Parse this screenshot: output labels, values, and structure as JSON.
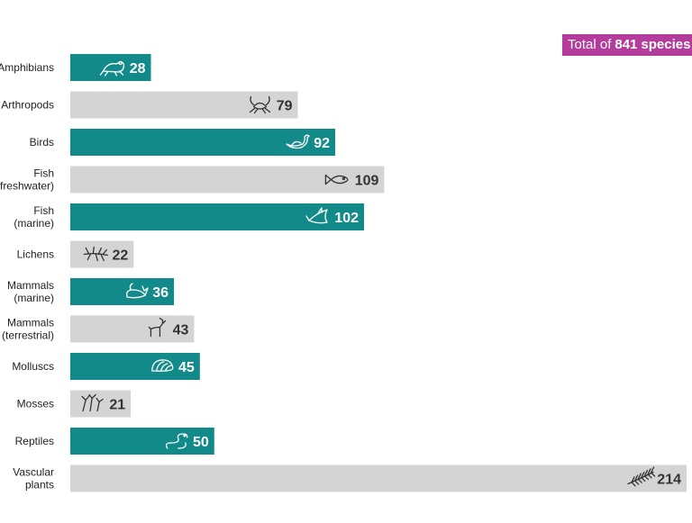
{
  "badge": {
    "prefix": "Total of",
    "count": "841",
    "suffix": "species"
  },
  "colors": {
    "highlight": "#138a8a",
    "muted": "#d4d4d4",
    "badge": "#b43c9c",
    "value_on_highlight": "#ffffff",
    "value_on_muted": "#333333",
    "label": "#222222"
  },
  "chart_data": {
    "type": "bar",
    "orientation": "horizontal",
    "title": "",
    "xlabel": "",
    "ylabel": "",
    "xlim": [
      0,
      214
    ],
    "grid": false,
    "categories": [
      {
        "label": [
          "Amphibians"
        ],
        "value": 28,
        "highlight": true,
        "icon": "frog-icon"
      },
      {
        "label": [
          "Arthropods"
        ],
        "value": 79,
        "highlight": false,
        "icon": "crab-icon"
      },
      {
        "label": [
          "Birds"
        ],
        "value": 92,
        "highlight": true,
        "icon": "bird-icon"
      },
      {
        "label": [
          "Fish",
          "(freshwater)"
        ],
        "value": 109,
        "highlight": false,
        "icon": "fish-icon"
      },
      {
        "label": [
          "Fish",
          "(marine)"
        ],
        "value": 102,
        "highlight": true,
        "icon": "shark-icon"
      },
      {
        "label": [
          "Lichens"
        ],
        "value": 22,
        "highlight": false,
        "icon": "lichen-icon"
      },
      {
        "label": [
          "Mammals",
          "(marine)"
        ],
        "value": 36,
        "highlight": true,
        "icon": "whale-icon"
      },
      {
        "label": [
          "Mammals",
          "(terrestrial)"
        ],
        "value": 43,
        "highlight": false,
        "icon": "deer-icon"
      },
      {
        "label": [
          "Molluscs"
        ],
        "value": 45,
        "highlight": true,
        "icon": "shell-icon"
      },
      {
        "label": [
          "Mosses"
        ],
        "value": 21,
        "highlight": false,
        "icon": "moss-icon"
      },
      {
        "label": [
          "Reptiles"
        ],
        "value": 50,
        "highlight": true,
        "icon": "snake-icon"
      },
      {
        "label": [
          "Vascular",
          "plants"
        ],
        "value": 214,
        "highlight": false,
        "icon": "fern-icon"
      }
    ]
  }
}
